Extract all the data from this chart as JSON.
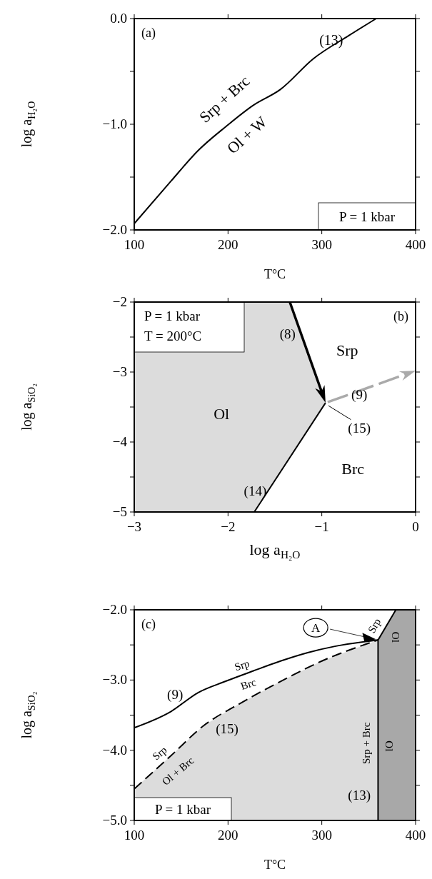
{
  "chart_data": [
    {
      "type": "line",
      "xlabel": "T°C",
      "ylabel": "log a$_{H₂O}$",
      "xlim": [
        100,
        400
      ],
      "ylim": [
        -2,
        0
      ],
      "xticks": [
        100,
        200,
        300,
        400
      ],
      "yticks": [
        {
          "value": -2,
          "label": "−2.0"
        },
        {
          "value": -1.5,
          "label": null
        },
        {
          "value": -1,
          "label": "−1.0"
        },
        {
          "value": -0.5,
          "label": null
        },
        {
          "value": 0,
          "label": "0.0"
        }
      ],
      "series": [
        {
          "type": "line",
          "color": "#000000",
          "x": [
            100,
            139,
            168,
            198,
            227,
            256,
            291,
            329,
            358
          ],
          "values": [
            -1.94,
            -1.54,
            -1.25,
            -1.02,
            -0.82,
            -0.67,
            -0.38,
            -0.16,
            0
          ]
        }
      ],
      "annotations": [
        "(a)",
        "P = 1 kbar",
        "Srp + Brc",
        "Ol + W",
        "(13)"
      ]
    },
    {
      "type": "line",
      "xlabel": "log a$_{H₂O}$",
      "ylabel": "log a$_{SiO₂}$",
      "xlim": [
        -3,
        0
      ],
      "ylim": [
        -5,
        -2
      ],
      "xticks": [
        {
          "value": -3,
          "label": "−3"
        },
        {
          "value": -2,
          "label": "−2"
        },
        {
          "value": -1,
          "label": "−1"
        },
        0
      ],
      "yticks": [
        {
          "value": -5,
          "label": "−5"
        },
        {
          "value": -4.5,
          "label": null
        },
        {
          "value": -4,
          "label": "−4"
        },
        {
          "value": -3.5,
          "label": null
        },
        {
          "value": -3,
          "label": "−3"
        },
        {
          "value": -2.5,
          "label": null
        },
        {
          "value": -2,
          "label": "−2"
        }
      ],
      "series": [
        {
          "type": "line",
          "color": "#000000",
          "x": [
            -1.72,
            -0.96
          ],
          "values": [
            -5,
            -3.44
          ]
        }
      ],
      "annotations": [
        "(b)",
        "P = 1 kbar",
        "T = 200°C",
        "(8)",
        "Srp",
        "(9)",
        "Ol",
        "(15)",
        "Brc",
        "(14)"
      ]
    },
    {
      "type": "line",
      "xlabel": "T°C",
      "ylabel": "log a$_{SiO₂}$",
      "xlim": [
        100,
        400
      ],
      "ylim": [
        -5,
        -2
      ],
      "xticks": [
        100,
        200,
        300,
        400
      ],
      "yticks": [
        {
          "value": -5,
          "label": "−5.0"
        },
        {
          "value": -4.5,
          "label": null
        },
        {
          "value": -4,
          "label": "−4.0"
        },
        {
          "value": -3.5,
          "label": null
        },
        {
          "value": -3,
          "label": "−3.0"
        },
        {
          "value": -2.5,
          "label": null
        },
        {
          "value": -2,
          "label": "−2.0"
        }
      ],
      "series": [
        {
          "type": "line",
          "color": "#000000",
          "x": [
            100,
            139,
            168,
            197,
            227,
            256,
            285,
            314,
            360
          ],
          "values": [
            -3.68,
            -3.45,
            -3.18,
            -3.02,
            -2.87,
            -2.73,
            -2.61,
            -2.52,
            -2.43
          ]
        },
        {
          "type": "line",
          "color": "#000000",
          "line_style": "dashed",
          "x": [
            100,
            139,
            174,
            212,
            256,
            300,
            360
          ],
          "values": [
            -4.55,
            -4.08,
            -3.65,
            -3.34,
            -3.02,
            -2.73,
            -2.43
          ]
        },
        {
          "type": "line",
          "color": "#000000",
          "x": [
            360,
            360
          ],
          "values": [
            -5,
            -2.43
          ]
        },
        {
          "type": "line",
          "color": "#000000",
          "x": [
            360,
            379
          ],
          "values": [
            -2.43,
            -2
          ]
        }
      ],
      "bands": [
        {
          "axis": "x",
          "from": 360,
          "to": 400,
          "color": "#a8a8a8"
        }
      ],
      "annotations": [
        "(c)",
        "P = 1 kbar",
        {
          "text": "A",
          "x": 360,
          "y": -2.43
        },
        "Srp",
        "Ol",
        "Srp",
        "Brc",
        "(9)",
        "(15)",
        "Srp",
        "Ol + Brc",
        "Srp + Brc",
        "Ol",
        "(13)"
      ]
    }
  ]
}
